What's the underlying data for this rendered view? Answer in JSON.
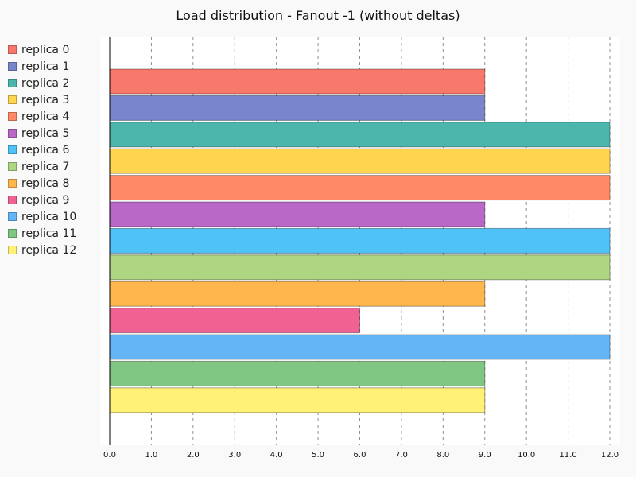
{
  "title": "Load distribution - Fanout -1 (without deltas)",
  "chart_data": {
    "type": "bar",
    "orientation": "horizontal",
    "title": "Load distribution - Fanout -1 (without deltas)",
    "xlim": [
      0,
      12
    ],
    "xticks": [
      "0.0",
      "1.0",
      "2.0",
      "3.0",
      "4.0",
      "5.0",
      "6.0",
      "7.0",
      "8.0",
      "9.0",
      "10.0",
      "11.0",
      "12.0"
    ],
    "grid": true,
    "legend_position": "left",
    "series": [
      {
        "name": "replica 0",
        "value": 9,
        "color": "#f8786c"
      },
      {
        "name": "replica 1",
        "value": 9,
        "color": "#7986cb"
      },
      {
        "name": "replica 2",
        "value": 12,
        "color": "#4db6ac"
      },
      {
        "name": "replica 3",
        "value": 12,
        "color": "#ffd54f"
      },
      {
        "name": "replica 4",
        "value": 12,
        "color": "#ff8a65"
      },
      {
        "name": "replica 5",
        "value": 9,
        "color": "#ba68c8"
      },
      {
        "name": "replica 6",
        "value": 12,
        "color": "#4fc3f7"
      },
      {
        "name": "replica 7",
        "value": 12,
        "color": "#aed581"
      },
      {
        "name": "replica 8",
        "value": 9,
        "color": "#ffb74d"
      },
      {
        "name": "replica 9",
        "value": 6,
        "color": "#f06292"
      },
      {
        "name": "replica 10",
        "value": 12,
        "color": "#64b5f6"
      },
      {
        "name": "replica 11",
        "value": 9,
        "color": "#81c784"
      },
      {
        "name": "replica 12",
        "value": 9,
        "color": "#fff176"
      }
    ]
  }
}
